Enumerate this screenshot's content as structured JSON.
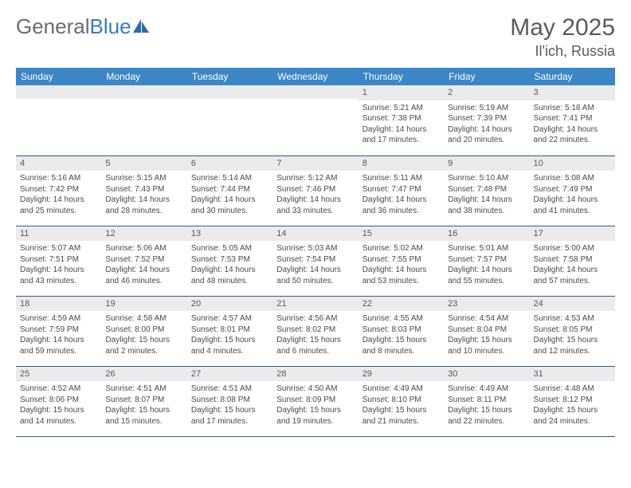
{
  "brand": {
    "part1": "General",
    "part2": "Blue"
  },
  "title": {
    "month": "May 2025",
    "location": "Il'ich, Russia"
  },
  "colors": {
    "header_bg": "#3b86c6",
    "header_text": "#ffffff",
    "daynum_bg": "#ebebeb",
    "row_border": "#2f5d8a",
    "brand_gray": "#6b6b6b",
    "brand_blue": "#3b7bbf",
    "text": "#4a4a4a"
  },
  "weekdays": [
    "Sunday",
    "Monday",
    "Tuesday",
    "Wednesday",
    "Thursday",
    "Friday",
    "Saturday"
  ],
  "weeks": [
    [
      null,
      null,
      null,
      null,
      {
        "d": "1",
        "sr": "Sunrise: 5:21 AM",
        "ss": "Sunset: 7:38 PM",
        "dl": "Daylight: 14 hours and 17 minutes."
      },
      {
        "d": "2",
        "sr": "Sunrise: 5:19 AM",
        "ss": "Sunset: 7:39 PM",
        "dl": "Daylight: 14 hours and 20 minutes."
      },
      {
        "d": "3",
        "sr": "Sunrise: 5:18 AM",
        "ss": "Sunset: 7:41 PM",
        "dl": "Daylight: 14 hours and 22 minutes."
      }
    ],
    [
      {
        "d": "4",
        "sr": "Sunrise: 5:16 AM",
        "ss": "Sunset: 7:42 PM",
        "dl": "Daylight: 14 hours and 25 minutes."
      },
      {
        "d": "5",
        "sr": "Sunrise: 5:15 AM",
        "ss": "Sunset: 7:43 PM",
        "dl": "Daylight: 14 hours and 28 minutes."
      },
      {
        "d": "6",
        "sr": "Sunrise: 5:14 AM",
        "ss": "Sunset: 7:44 PM",
        "dl": "Daylight: 14 hours and 30 minutes."
      },
      {
        "d": "7",
        "sr": "Sunrise: 5:12 AM",
        "ss": "Sunset: 7:46 PM",
        "dl": "Daylight: 14 hours and 33 minutes."
      },
      {
        "d": "8",
        "sr": "Sunrise: 5:11 AM",
        "ss": "Sunset: 7:47 PM",
        "dl": "Daylight: 14 hours and 36 minutes."
      },
      {
        "d": "9",
        "sr": "Sunrise: 5:10 AM",
        "ss": "Sunset: 7:48 PM",
        "dl": "Daylight: 14 hours and 38 minutes."
      },
      {
        "d": "10",
        "sr": "Sunrise: 5:08 AM",
        "ss": "Sunset: 7:49 PM",
        "dl": "Daylight: 14 hours and 41 minutes."
      }
    ],
    [
      {
        "d": "11",
        "sr": "Sunrise: 5:07 AM",
        "ss": "Sunset: 7:51 PM",
        "dl": "Daylight: 14 hours and 43 minutes."
      },
      {
        "d": "12",
        "sr": "Sunrise: 5:06 AM",
        "ss": "Sunset: 7:52 PM",
        "dl": "Daylight: 14 hours and 46 minutes."
      },
      {
        "d": "13",
        "sr": "Sunrise: 5:05 AM",
        "ss": "Sunset: 7:53 PM",
        "dl": "Daylight: 14 hours and 48 minutes."
      },
      {
        "d": "14",
        "sr": "Sunrise: 5:03 AM",
        "ss": "Sunset: 7:54 PM",
        "dl": "Daylight: 14 hours and 50 minutes."
      },
      {
        "d": "15",
        "sr": "Sunrise: 5:02 AM",
        "ss": "Sunset: 7:55 PM",
        "dl": "Daylight: 14 hours and 53 minutes."
      },
      {
        "d": "16",
        "sr": "Sunrise: 5:01 AM",
        "ss": "Sunset: 7:57 PM",
        "dl": "Daylight: 14 hours and 55 minutes."
      },
      {
        "d": "17",
        "sr": "Sunrise: 5:00 AM",
        "ss": "Sunset: 7:58 PM",
        "dl": "Daylight: 14 hours and 57 minutes."
      }
    ],
    [
      {
        "d": "18",
        "sr": "Sunrise: 4:59 AM",
        "ss": "Sunset: 7:59 PM",
        "dl": "Daylight: 14 hours and 59 minutes."
      },
      {
        "d": "19",
        "sr": "Sunrise: 4:58 AM",
        "ss": "Sunset: 8:00 PM",
        "dl": "Daylight: 15 hours and 2 minutes."
      },
      {
        "d": "20",
        "sr": "Sunrise: 4:57 AM",
        "ss": "Sunset: 8:01 PM",
        "dl": "Daylight: 15 hours and 4 minutes."
      },
      {
        "d": "21",
        "sr": "Sunrise: 4:56 AM",
        "ss": "Sunset: 8:02 PM",
        "dl": "Daylight: 15 hours and 6 minutes."
      },
      {
        "d": "22",
        "sr": "Sunrise: 4:55 AM",
        "ss": "Sunset: 8:03 PM",
        "dl": "Daylight: 15 hours and 8 minutes."
      },
      {
        "d": "23",
        "sr": "Sunrise: 4:54 AM",
        "ss": "Sunset: 8:04 PM",
        "dl": "Daylight: 15 hours and 10 minutes."
      },
      {
        "d": "24",
        "sr": "Sunrise: 4:53 AM",
        "ss": "Sunset: 8:05 PM",
        "dl": "Daylight: 15 hours and 12 minutes."
      }
    ],
    [
      {
        "d": "25",
        "sr": "Sunrise: 4:52 AM",
        "ss": "Sunset: 8:06 PM",
        "dl": "Daylight: 15 hours and 14 minutes."
      },
      {
        "d": "26",
        "sr": "Sunrise: 4:51 AM",
        "ss": "Sunset: 8:07 PM",
        "dl": "Daylight: 15 hours and 15 minutes."
      },
      {
        "d": "27",
        "sr": "Sunrise: 4:51 AM",
        "ss": "Sunset: 8:08 PM",
        "dl": "Daylight: 15 hours and 17 minutes."
      },
      {
        "d": "28",
        "sr": "Sunrise: 4:50 AM",
        "ss": "Sunset: 8:09 PM",
        "dl": "Daylight: 15 hours and 19 minutes."
      },
      {
        "d": "29",
        "sr": "Sunrise: 4:49 AM",
        "ss": "Sunset: 8:10 PM",
        "dl": "Daylight: 15 hours and 21 minutes."
      },
      {
        "d": "30",
        "sr": "Sunrise: 4:49 AM",
        "ss": "Sunset: 8:11 PM",
        "dl": "Daylight: 15 hours and 22 minutes."
      },
      {
        "d": "31",
        "sr": "Sunrise: 4:48 AM",
        "ss": "Sunset: 8:12 PM",
        "dl": "Daylight: 15 hours and 24 minutes."
      }
    ]
  ]
}
